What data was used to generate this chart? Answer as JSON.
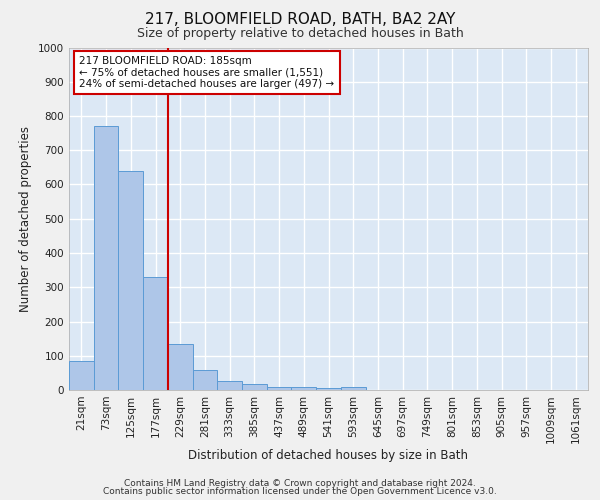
{
  "title1": "217, BLOOMFIELD ROAD, BATH, BA2 2AY",
  "title2": "Size of property relative to detached houses in Bath",
  "xlabel": "Distribution of detached houses by size in Bath",
  "ylabel": "Number of detached properties",
  "categories": [
    "21sqm",
    "73sqm",
    "125sqm",
    "177sqm",
    "229sqm",
    "281sqm",
    "333sqm",
    "385sqm",
    "437sqm",
    "489sqm",
    "541sqm",
    "593sqm",
    "645sqm",
    "697sqm",
    "749sqm",
    "801sqm",
    "853sqm",
    "905sqm",
    "957sqm",
    "1009sqm",
    "1061sqm"
  ],
  "values": [
    85,
    770,
    640,
    330,
    133,
    57,
    25,
    18,
    10,
    8,
    7,
    10,
    0,
    0,
    0,
    0,
    0,
    0,
    0,
    0,
    0
  ],
  "bar_color": "#aec6e8",
  "bar_edge_color": "#5b9bd5",
  "vline_index": 3,
  "vline_color": "#cc0000",
  "ylim": [
    0,
    1000
  ],
  "yticks": [
    0,
    100,
    200,
    300,
    400,
    500,
    600,
    700,
    800,
    900,
    1000
  ],
  "annotation_box_text": "217 BLOOMFIELD ROAD: 185sqm\n← 75% of detached houses are smaller (1,551)\n24% of semi-detached houses are larger (497) →",
  "footer_line1": "Contains HM Land Registry data © Crown copyright and database right 2024.",
  "footer_line2": "Contains public sector information licensed under the Open Government Licence v3.0.",
  "plot_bg_color": "#dce8f5",
  "fig_bg_color": "#f0f0f0",
  "grid_color": "#ffffff",
  "title1_fontsize": 11,
  "title2_fontsize": 9,
  "xlabel_fontsize": 8.5,
  "ylabel_fontsize": 8.5,
  "tick_fontsize": 7.5,
  "footer_fontsize": 6.5
}
